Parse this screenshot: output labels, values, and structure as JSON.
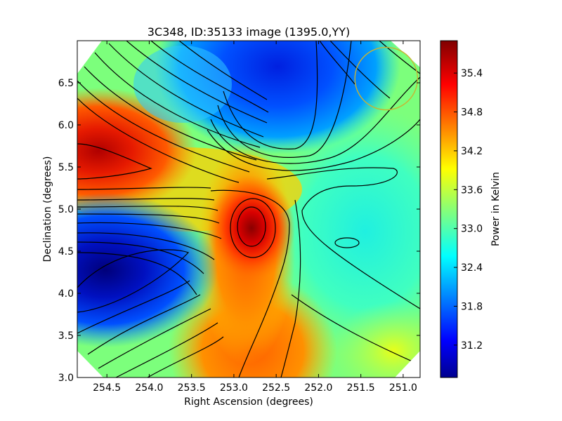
{
  "chart_data": {
    "type": "heatmap",
    "title": "3C348, ID:35133 image (1395.0,YY)",
    "xlabel": "Right Ascension (degrees)",
    "ylabel": "Declination (degrees)",
    "colorbar_label": "Power in Kelvin",
    "xlim": [
      254.85,
      250.8
    ],
    "ylim": [
      3.0,
      7.0
    ],
    "x_ticks": [
      254.5,
      254.0,
      253.5,
      253.0,
      252.5,
      252.0,
      251.5,
      251.0
    ],
    "x_tick_labels": [
      "254.5",
      "254.0",
      "253.5",
      "253.0",
      "252.5",
      "252.0",
      "251.5",
      "251.0"
    ],
    "y_ticks": [
      3.0,
      3.5,
      4.0,
      4.5,
      5.0,
      5.5,
      6.0,
      6.5
    ],
    "y_tick_labels": [
      "3.0",
      "3.5",
      "4.0",
      "4.5",
      "5.0",
      "5.5",
      "6.0",
      "6.5"
    ],
    "colorbar_range": [
      30.7,
      35.9
    ],
    "colorbar_ticks": [
      31.2,
      31.8,
      32.4,
      33.0,
      33.6,
      34.2,
      34.8,
      35.4
    ],
    "colorbar_tick_labels": [
      "31.2",
      "31.8",
      "32.4",
      "33.0",
      "33.6",
      "34.2",
      "34.8",
      "35.4"
    ],
    "colormap": "jet",
    "contours": true,
    "grid": false,
    "features": [
      {
        "kind": "hot-spot",
        "ra": 254.8,
        "dec": 5.7,
        "value": 35.5
      },
      {
        "kind": "hot-spot",
        "ra": 252.75,
        "dec": 4.8,
        "value": 35.8
      },
      {
        "kind": "cold-spot",
        "ra": 254.8,
        "dec": 4.25,
        "value": 30.8
      },
      {
        "kind": "cold-spot",
        "ra": 252.5,
        "dec": 6.5,
        "value": 31.1
      },
      {
        "kind": "plateau",
        "ra": 251.6,
        "dec": 4.6,
        "value": 33.0
      }
    ],
    "beam_marker": {
      "ra": 251.2,
      "dec": 6.55,
      "radius_deg": 0.37,
      "color": "#c8b432"
    }
  }
}
